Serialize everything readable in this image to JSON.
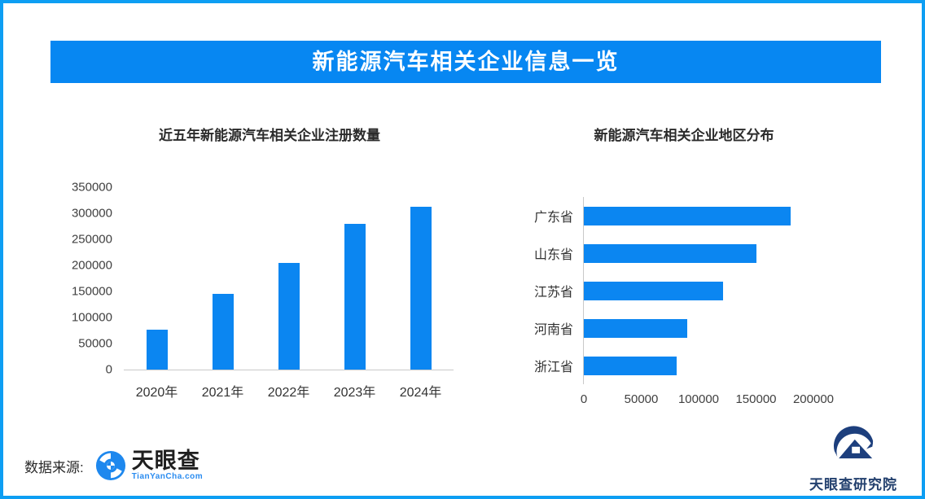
{
  "page": {
    "banner_title": "新能源汽车相关企业信息一览",
    "accent_blue": "#0b86f1",
    "border_blue": "#0d9ef3",
    "banner_blue": "#0787f2"
  },
  "footer": {
    "source_label": "数据来源:",
    "tianyancha_name": "天眼查",
    "tianyancha_url_text": "TianYanCha.com",
    "research_institute": "天眼查研究院"
  },
  "chart_data": [
    {
      "type": "bar",
      "orientation": "vertical",
      "title": "近五年新能源汽车相关企业注册数量",
      "categories": [
        "2020年",
        "2021年",
        "2022年",
        "2023年",
        "2024年"
      ],
      "values": [
        76000,
        145000,
        204000,
        280000,
        312000
      ],
      "ylabel": "",
      "xlabel": "",
      "ylim": [
        0,
        350000
      ],
      "yticks": [
        0,
        50000,
        100000,
        150000,
        200000,
        250000,
        300000,
        350000
      ],
      "grid": false,
      "legend": false,
      "bar_color": "#0b86f1"
    },
    {
      "type": "bar",
      "orientation": "horizontal",
      "title": "新能源汽车相关企业地区分布",
      "categories": [
        "广东省",
        "山东省",
        "江苏省",
        "河南省",
        "浙江省"
      ],
      "values": [
        180000,
        150000,
        121000,
        90000,
        81000
      ],
      "ylabel": "",
      "xlabel": "",
      "xlim": [
        0,
        200000
      ],
      "xticks": [
        0,
        50000,
        100000,
        150000,
        200000
      ],
      "grid": false,
      "legend": false,
      "bar_color": "#0b86f1"
    }
  ]
}
